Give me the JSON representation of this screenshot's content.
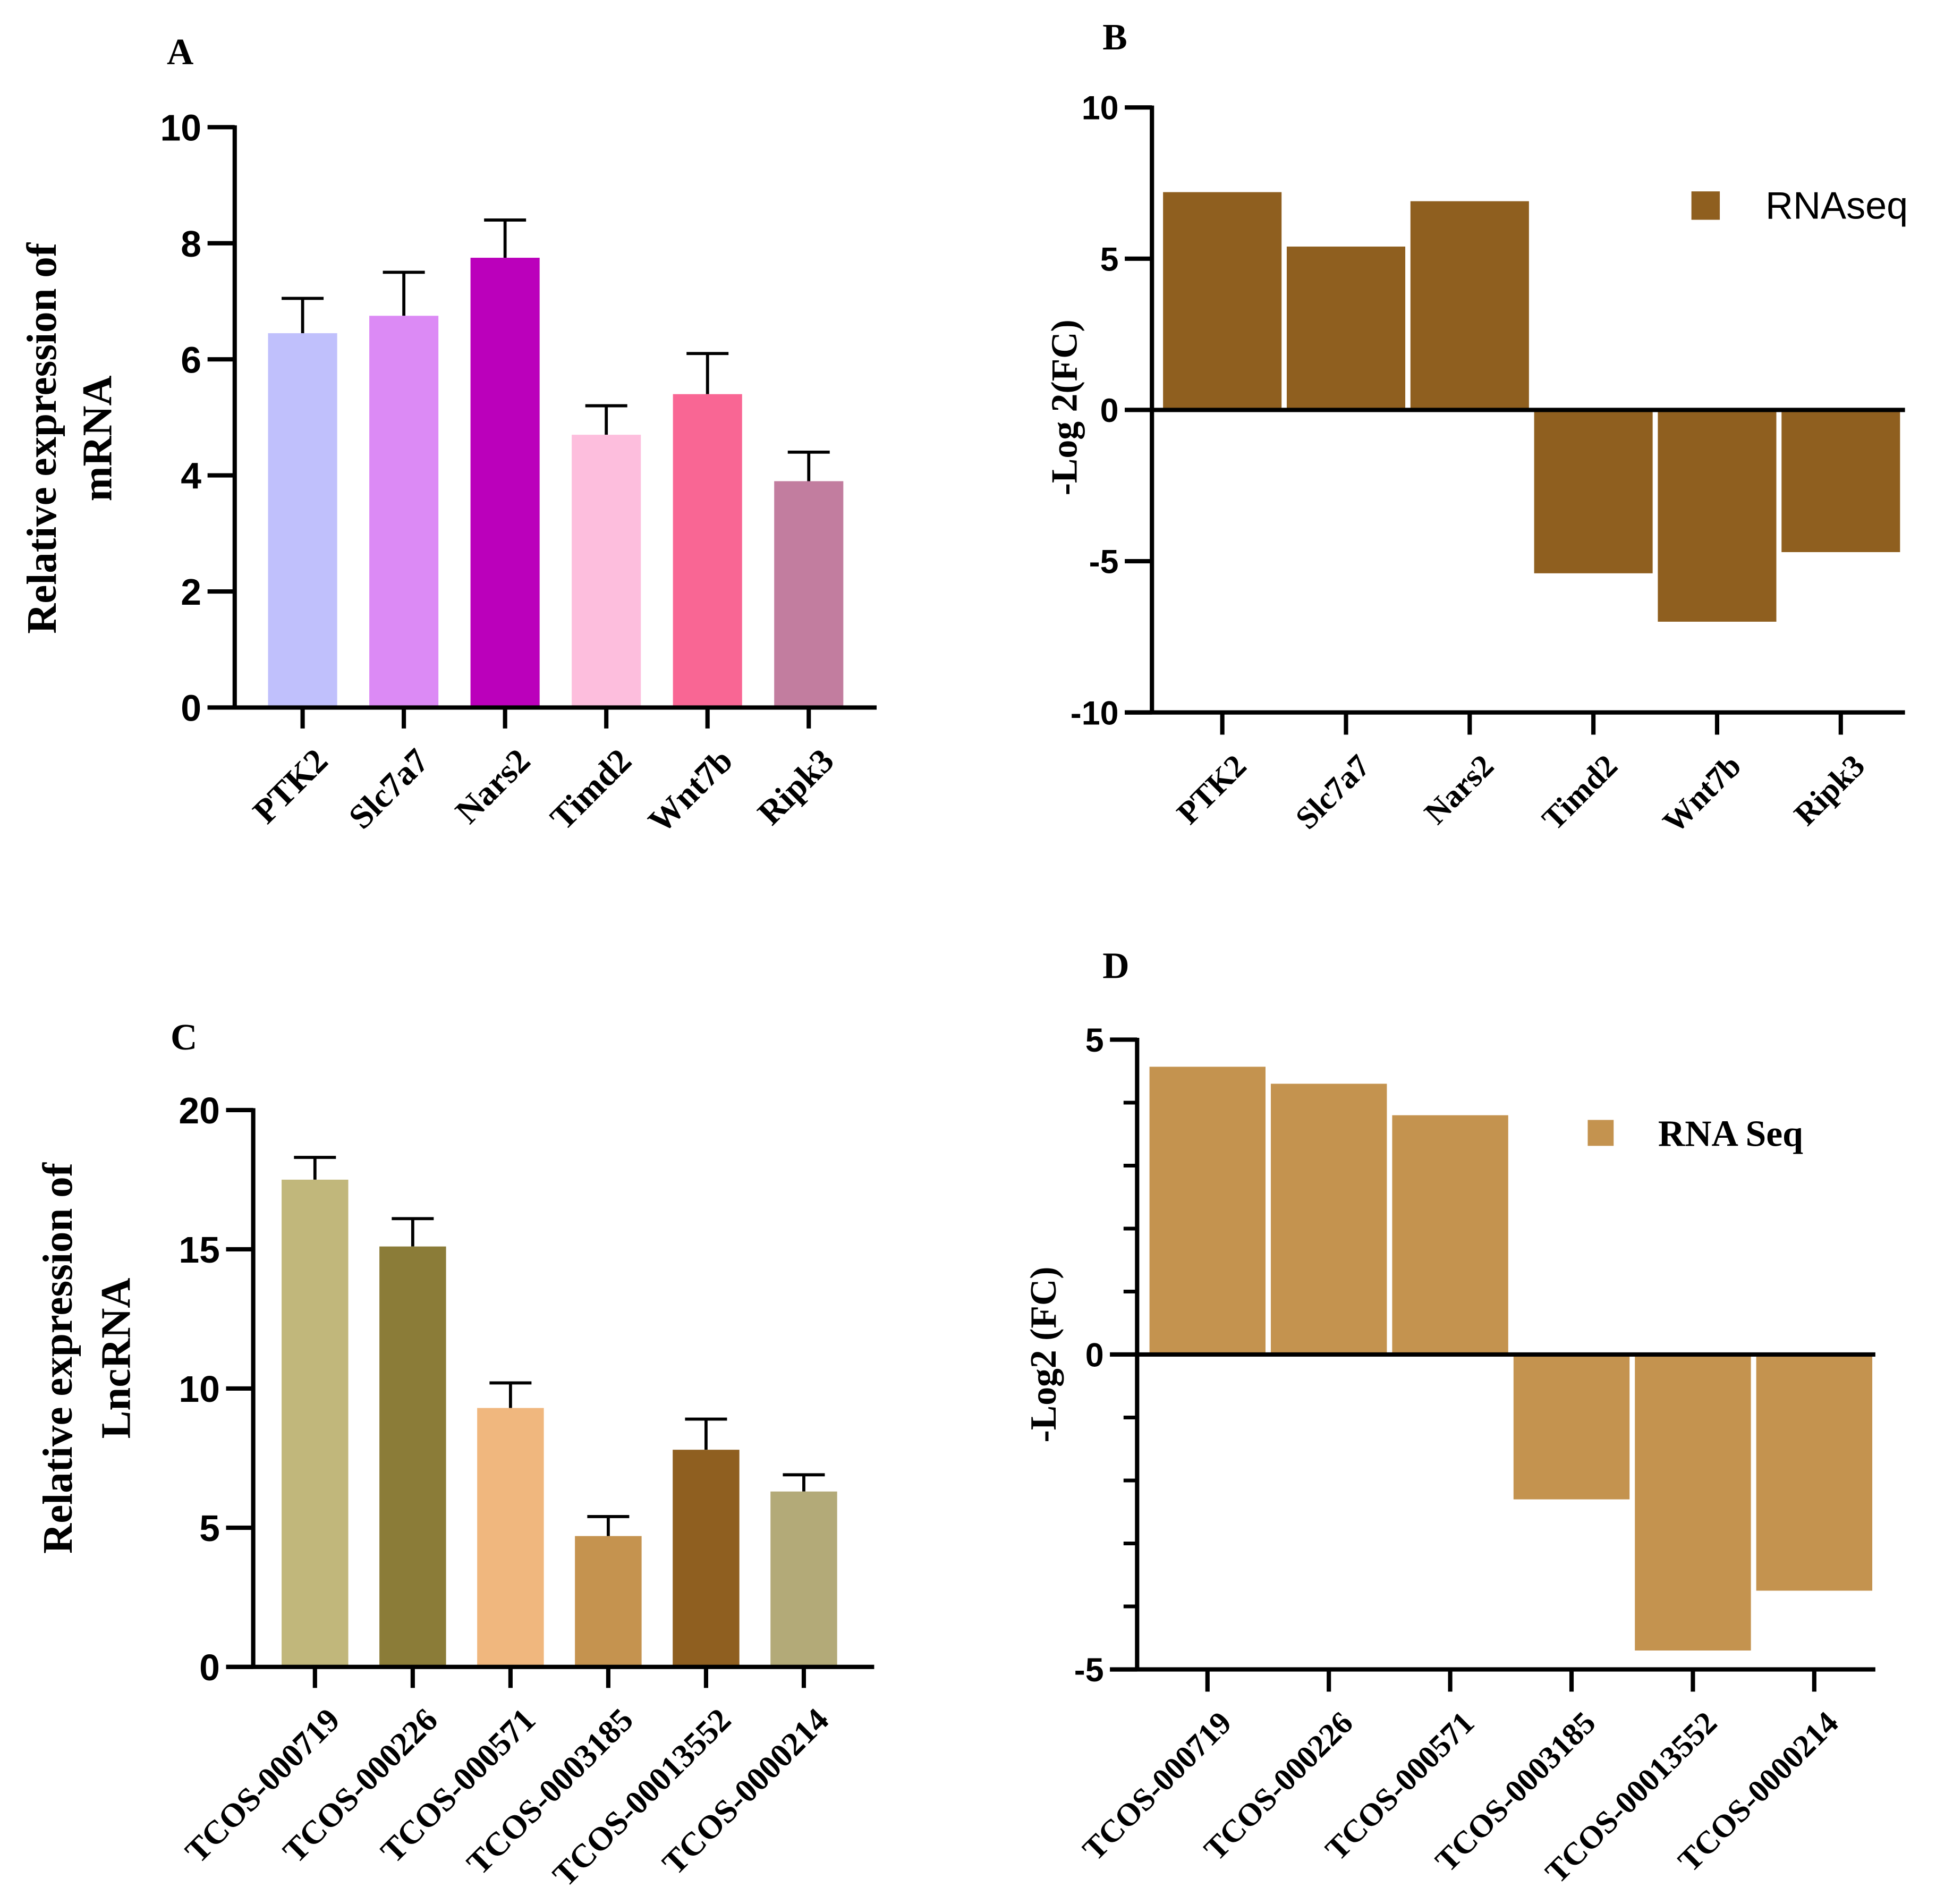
{
  "chart_data": [
    {
      "panel": "A",
      "type": "bar",
      "ylabel": [
        "Relative expression of",
        "mRNA"
      ],
      "categories": [
        "PTK2",
        "Slc7a7",
        "Nars2",
        "Timd2",
        "Wnt7b",
        "Ripk3"
      ],
      "values": [
        6.45,
        6.75,
        7.75,
        4.7,
        5.4,
        3.9
      ],
      "error_upper": [
        0.6,
        0.75,
        0.65,
        0.5,
        0.7,
        0.5
      ],
      "ylim": [
        0,
        10
      ],
      "yticks": [
        "0",
        "2",
        "4",
        "6",
        "8",
        "10"
      ],
      "colors": [
        "#c0c0fc",
        "#dc8af5",
        "#bb00bb",
        "#fdbedd",
        "#f96694",
        "#c27d9f"
      ]
    },
    {
      "panel": "B",
      "type": "bar",
      "ylabel": "-Log 2(FC)",
      "categories": [
        "PTK2",
        "Slc7a7",
        "Nars2",
        "Timd2",
        "Wnt7b",
        "Ripk3"
      ],
      "series": [
        {
          "name": "RNAseq",
          "values": [
            7.2,
            5.4,
            6.9,
            -5.4,
            -7.0,
            -4.7
          ]
        }
      ],
      "ylim": [
        -10,
        10
      ],
      "yticks": [
        "-10",
        "-5",
        "0",
        "5",
        "10"
      ],
      "legend": "top-right",
      "color": "#8f5f1f"
    },
    {
      "panel": "C",
      "type": "bar",
      "ylabel": [
        "Relative expression of",
        "LncRNA"
      ],
      "categories": [
        "TCOS-000719",
        "TCOS-000226",
        "TCOS-000571",
        "TCOS-0003185",
        "TCOS-00013552",
        "TCOS-0000214"
      ],
      "values": [
        17.5,
        15.1,
        9.3,
        4.7,
        7.8,
        6.3
      ],
      "error_upper": [
        0.8,
        1.0,
        0.9,
        0.7,
        1.1,
        0.6
      ],
      "ylim": [
        0,
        20
      ],
      "yticks": [
        "0",
        "5",
        "10",
        "15",
        "20"
      ],
      "colors": [
        "#c1b77b",
        "#8b7c38",
        "#f0b77e",
        "#c5934f",
        "#8f5f20",
        "#b3aa78"
      ]
    },
    {
      "panel": "D",
      "type": "bar",
      "ylabel": "-Log2 (FC)",
      "categories": [
        "TCOS-000719",
        "TCOS-000226",
        "TCOS-000571",
        "TCOS-0003185",
        "TCOS-00013552",
        "TCOS-0000214"
      ],
      "series": [
        {
          "name": "RNA Seq",
          "values": [
            4.57,
            4.3,
            3.8,
            -2.3,
            -4.7,
            -3.75
          ]
        }
      ],
      "ylim": [
        -5,
        5
      ],
      "yticks": [
        "-5",
        "0",
        "5"
      ],
      "legend": "top-right",
      "color": "#c4934f"
    }
  ]
}
